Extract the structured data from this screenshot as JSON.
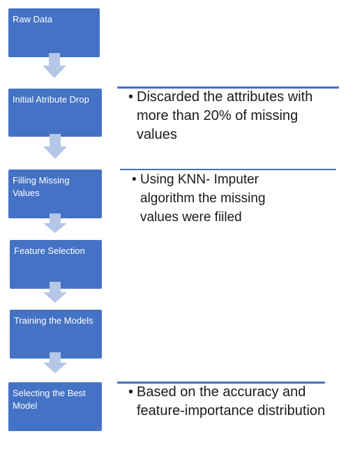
{
  "steps": [
    {
      "label": "Raw Data"
    },
    {
      "label": "Initial Atribute Drop"
    },
    {
      "label": "Filling Missing Values"
    },
    {
      "label": "Feature Selection"
    },
    {
      "label": " Training the Models"
    },
    {
      "label": "Selecting the Best Model"
    }
  ],
  "notes": [
    {
      "bullet": "•",
      "text": "Discarded the attributes with more than 20% of missing values"
    },
    {
      "bullet": "•",
      "text": "Using KNN- Imputer algorithm the missing values were fiiled"
    },
    {
      "bullet": "•",
      "text": "Based on the accuracy and feature-importance distribution"
    }
  ],
  "colors": {
    "box": "#4472c4",
    "arrow": "#b4c7e7",
    "text": "#1a1a1a"
  }
}
